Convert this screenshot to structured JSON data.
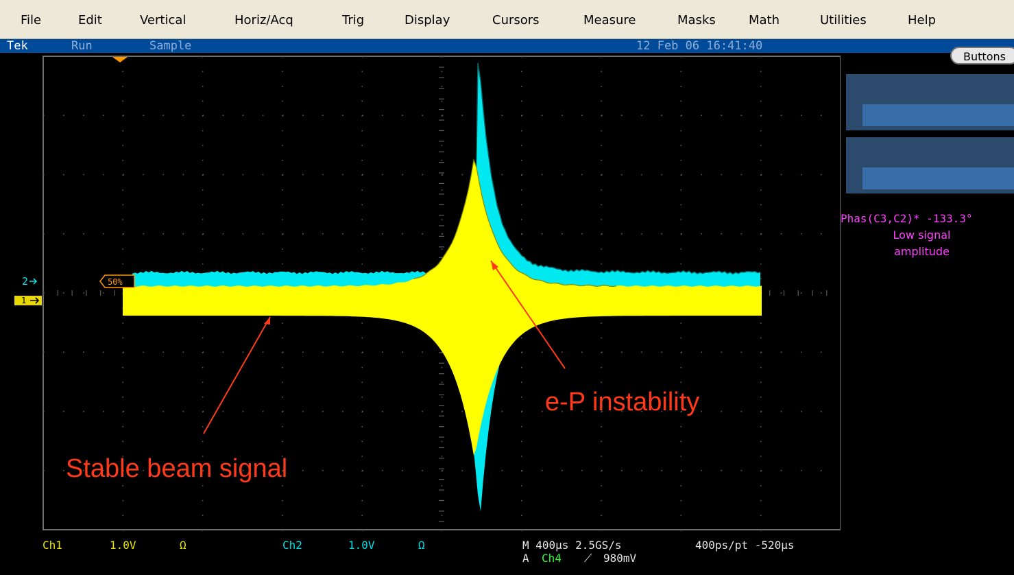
{
  "menu": [
    "File",
    "Edit",
    "Vertical",
    "Horiz/Acq",
    "Trig",
    "Display",
    "Cursors",
    "Measure",
    "Masks",
    "Math",
    "Utilities",
    "Help"
  ],
  "status": {
    "brand": "Tek",
    "state": "Run",
    "mode": "Sample",
    "datetime": "12 Feb 06 16:41:40"
  },
  "right_panel": {
    "buttons_label": "Buttons",
    "measurement": "Phas(C3,C2)* -133.3°",
    "warning_line1": "Low signal",
    "warning_line2": "amplitude"
  },
  "markers": {
    "ch2": "2",
    "ch1": "1",
    "trigger_level": "50%"
  },
  "bottom": {
    "ch1_label": "Ch1",
    "ch1_scale": "1.0V",
    "ch1_coupling": "Ω",
    "ch2_label": "Ch2",
    "ch2_scale": "1.0V",
    "ch2_coupling": "Ω",
    "timebase": "M 400µs 2.5GS/s",
    "resolution": "400ps/pt -520µs",
    "trig_prefix": "A",
    "trig_source": "Ch4",
    "trig_slope": "⟋",
    "trig_level": "980mV"
  },
  "annotations": {
    "stable": "Stable beam signal",
    "instability": "e-P instability"
  },
  "colors": {
    "ch1": "#ffff00",
    "ch2": "#00e8f0",
    "annotation": "#ff3a1a",
    "grid": "#6a6a6a",
    "measurement": "#ff40ff"
  }
}
